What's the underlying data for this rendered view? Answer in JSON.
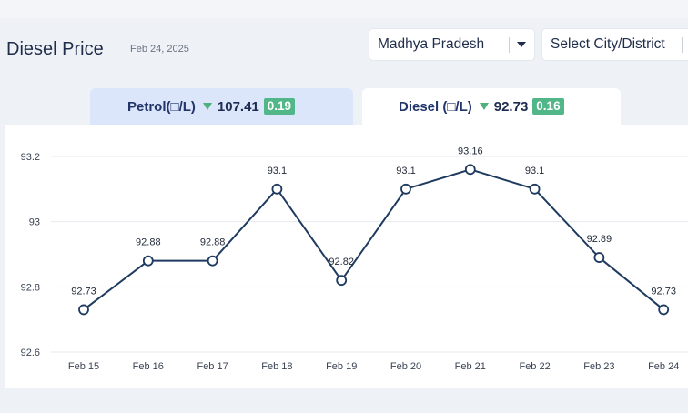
{
  "header": {
    "title": "Diesel Price",
    "date": "Feb 24, 2025",
    "state_select": "Madhya Pradesh",
    "city_select": "Select City/District"
  },
  "tabs": [
    {
      "label": "Petrol(□/L)",
      "price": "107.41",
      "change": "0.19",
      "direction": "down",
      "active": false
    },
    {
      "label": "Diesel (□/L)",
      "price": "92.73",
      "change": "0.16",
      "direction": "down",
      "active": true
    }
  ],
  "colors": {
    "line": "#1e3a5f",
    "badge": "#52b788",
    "inactive_tab": "#dbe6fa",
    "grid": "#e6e9ef"
  },
  "chart_data": {
    "type": "line",
    "categories": [
      "Feb 15",
      "Feb 16",
      "Feb 17",
      "Feb 18",
      "Feb 19",
      "Feb 20",
      "Feb 21",
      "Feb 22",
      "Feb 23",
      "Feb 24"
    ],
    "series": [
      {
        "values": [
          92.73,
          92.88,
          92.88,
          93.1,
          92.82,
          93.1,
          93.16,
          93.1,
          92.89,
          92.73
        ]
      }
    ],
    "data_labels": [
      "92.73",
      "92.88",
      "92.88",
      "93.1",
      "92.82",
      "93.1",
      "93.16",
      "93.1",
      "92.89",
      "92.73"
    ],
    "yticks": [
      "92.6",
      "92.8",
      "93",
      "93.2"
    ],
    "ytick_values": [
      92.6,
      92.8,
      93.0,
      93.2
    ],
    "ylim": [
      92.6,
      93.2
    ],
    "grid": true,
    "legend": false
  }
}
